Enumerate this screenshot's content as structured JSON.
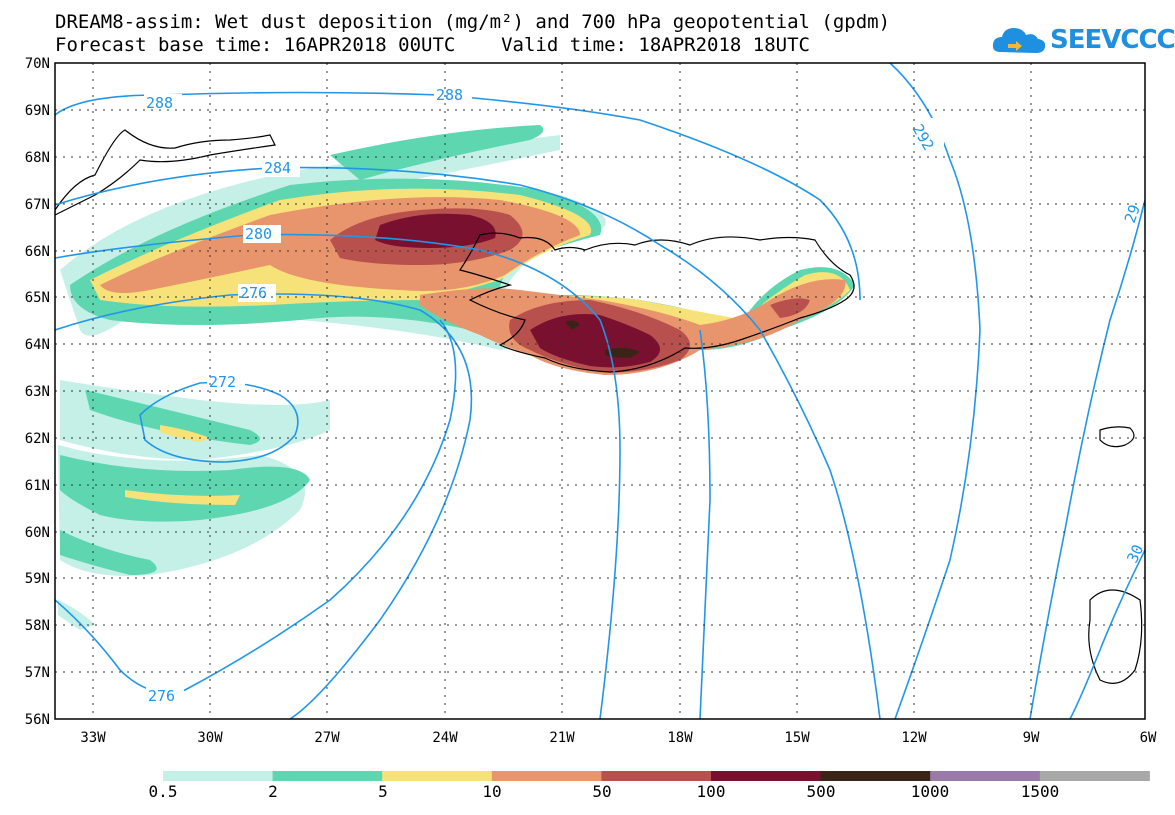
{
  "title": {
    "line1": "DREAM8-assim: Wet dust deposition (mg/m²) and 700 hPa geopotential (gpdm)",
    "line2": "Forecast base time: 16APR2018 00UTC    Valid time: 18APR2018 18UTC"
  },
  "logo": {
    "text": "SEEVCCC",
    "icon": "cloud-icon",
    "color": "#1f8fe0"
  },
  "axes": {
    "lat_labels": [
      "70N",
      "69N",
      "68N",
      "67N",
      "66N",
      "65N",
      "64N",
      "63N",
      "62N",
      "61N",
      "60N",
      "59N",
      "58N",
      "57N",
      "56N"
    ],
    "lon_labels": [
      "33W",
      "30W",
      "27W",
      "24W",
      "21W",
      "18W",
      "15W",
      "12W",
      "9W",
      "6W"
    ]
  },
  "contours": {
    "color": "#2196e8",
    "labels": [
      "288",
      "288",
      "292",
      "284",
      "280",
      "276",
      "272",
      "276",
      "29",
      "30"
    ]
  },
  "legend": {
    "thresholds": [
      "0.5",
      "2",
      "5",
      "10",
      "50",
      "100",
      "500",
      "1000",
      "1500"
    ],
    "colors": [
      "#c4f0e8",
      "#5ed6b0",
      "#f7e27a",
      "#e8946c",
      "#b8504e",
      "#7a1030",
      "#3a2418",
      "#9a7aa8",
      "#a8a8a8"
    ]
  },
  "fields": {
    "colors": {
      "c1": "#c4f0e8",
      "c2": "#5ed6b0",
      "c3": "#f7e27a",
      "c4": "#e8946c",
      "c5": "#b8504e",
      "c6": "#7a1030",
      "c7": "#3a2418"
    }
  }
}
